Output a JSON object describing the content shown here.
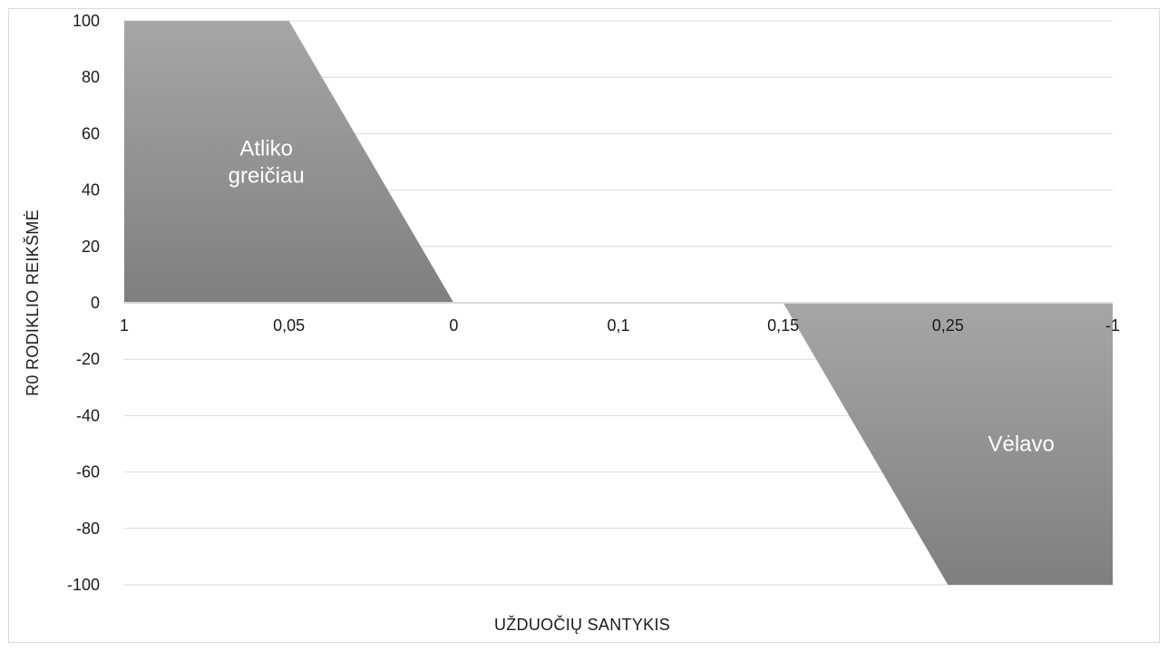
{
  "chart_data": {
    "type": "area",
    "title": "",
    "xlabel": "UŽDUOČIŲ SANTYKIS",
    "ylabel": "R0 RODIKLIO REIKŠMĖ",
    "categories": [
      "1",
      "0,05",
      "0",
      "0,1",
      "0,15",
      "0,25",
      "-1"
    ],
    "ylim": [
      -100,
      100
    ],
    "yticks": [
      100,
      80,
      60,
      40,
      20,
      0,
      -20,
      -40,
      -60,
      -80,
      -100
    ],
    "grid": true,
    "regions": [
      {
        "name": "Atliko greičiau",
        "label_lines": [
          "Atliko",
          "greičiau"
        ],
        "points": [
          [
            0,
            100
          ],
          [
            1,
            100
          ],
          [
            2,
            0
          ],
          [
            0,
            0
          ]
        ]
      },
      {
        "name": "Vėlavo",
        "label_lines": [
          "Vėlavo"
        ],
        "points": [
          [
            4,
            0
          ],
          [
            6,
            0
          ],
          [
            6,
            -100
          ],
          [
            5,
            -100
          ]
        ]
      }
    ],
    "colors": {
      "region_light": "#a6a6a6",
      "region_dark": "#7f7f7f",
      "grid": "#d9d9d9",
      "axis": "#d9d9d9"
    }
  }
}
